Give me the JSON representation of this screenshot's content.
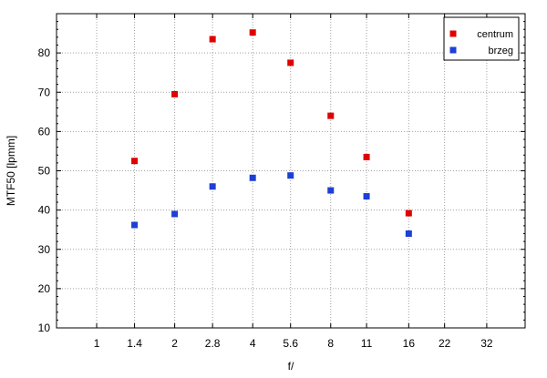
{
  "chart_data": {
    "type": "scatter",
    "title": "",
    "xlabel": "f/",
    "ylabel": "MTF50 [lpmm]",
    "x_scale": "log2",
    "x_ticks": [
      "1",
      "1.4",
      "2",
      "2.8",
      "4",
      "5.6",
      "8",
      "11",
      "16",
      "22",
      "32"
    ],
    "x_tick_values": [
      1,
      1.4,
      2,
      2.8,
      4,
      5.6,
      8,
      11,
      16,
      22,
      32
    ],
    "xlim": [
      0.7,
      45
    ],
    "ylim": [
      10,
      90
    ],
    "y_ticks": [
      10,
      20,
      30,
      40,
      50,
      60,
      70,
      80
    ],
    "grid": true,
    "legend_position": "top-right",
    "series": [
      {
        "name": "centrum",
        "color": "#e00000",
        "x": [
          1.4,
          2,
          2.8,
          4,
          5.6,
          8,
          11,
          16
        ],
        "y": [
          52.5,
          69.5,
          83.5,
          85.2,
          77.5,
          64,
          53.5,
          39.2
        ]
      },
      {
        "name": "brzeg",
        "color": "#1c3fd6",
        "x": [
          1.4,
          2,
          2.8,
          4,
          5.6,
          8,
          11,
          16
        ],
        "y": [
          36.2,
          39.0,
          46.0,
          48.2,
          48.8,
          45.0,
          43.5,
          34.0
        ]
      }
    ]
  }
}
